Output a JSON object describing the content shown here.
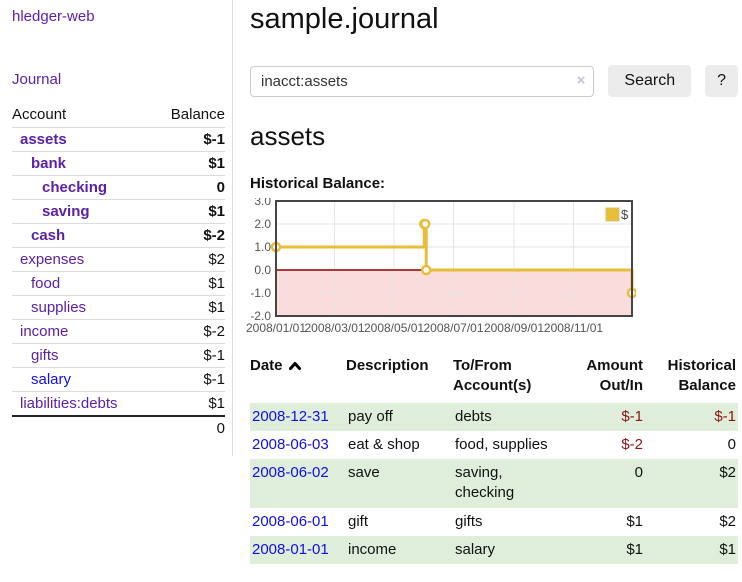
{
  "colors": {
    "link_purple": "#5b21a6",
    "link_blue": "#1010e0",
    "negative_strong": "#8b1414",
    "negative_soft": "#b26b6b",
    "row_green": "#dfeeda",
    "button_bg": "#ececec",
    "separator": "#dddddd"
  },
  "sidebar": {
    "brand": "hledger-web",
    "nav_journal": "Journal",
    "accounts": {
      "header_account": "Account",
      "header_balance": "Balance",
      "rows": [
        {
          "label": "assets",
          "balance": "$-1"
        },
        {
          "label": "bank",
          "balance": "$1"
        },
        {
          "label": "checking",
          "balance": "0"
        },
        {
          "label": "saving",
          "balance": "$1"
        },
        {
          "label": "cash",
          "balance": "$-2"
        },
        {
          "label": "expenses",
          "balance": "$2"
        },
        {
          "label": "food",
          "balance": "$1"
        },
        {
          "label": "supplies",
          "balance": "$1"
        },
        {
          "label": "income",
          "balance": "$-2"
        },
        {
          "label": "gifts",
          "balance": "$-1"
        },
        {
          "label": "salary",
          "balance": "$-1"
        },
        {
          "label": "liabilities:debts",
          "balance": "$1"
        }
      ],
      "total": "0"
    }
  },
  "main": {
    "title": "sample.journal",
    "search": {
      "value": "inacct:assets",
      "clear": "×",
      "submit": "Search",
      "help": "?"
    },
    "account_heading": "assets",
    "section_label": "Historical Balance:"
  },
  "chart_data": {
    "type": "line",
    "step": true,
    "title": "Historical Balance",
    "x_range": [
      "2008-01-01",
      "2008-12-31"
    ],
    "y_range": [
      -2,
      3
    ],
    "y_ticks": [
      "3.0",
      "2.0",
      "1.0",
      "0.0",
      "-1.0",
      "-2.0"
    ],
    "x_ticks": [
      {
        "label": "2008/01/01",
        "date": "2008-01-01"
      },
      {
        "label": "2008/03/01",
        "date": "2008-03-01"
      },
      {
        "label": "2008/05/01",
        "date": "2008-05-01"
      },
      {
        "label": "2008/07/01",
        "date": "2008-07-01"
      },
      {
        "label": "2008/09/01",
        "date": "2008-09-01"
      },
      {
        "label": "2008/11/01",
        "date": "2008-11-01"
      }
    ],
    "series": [
      {
        "name": "$",
        "color": "#e8bd3a",
        "points": [
          {
            "date": "2008-01-01",
            "value": 1
          },
          {
            "date": "2008-06-01",
            "value": 2
          },
          {
            "date": "2008-06-02",
            "value": 2
          },
          {
            "date": "2008-06-03",
            "value": 0
          },
          {
            "date": "2008-12-31",
            "value": -1
          }
        ]
      }
    ],
    "legend": {
      "label": "$",
      "position": "top-right"
    },
    "styles": {
      "grid": "#e5e5e5",
      "border": "#454545",
      "zero_line": "#8b0000",
      "negative_fill": "#fbdcdc",
      "marker_fill": "#ffffff",
      "tick_text": "#545454",
      "legend_box_border": "#d9c06a"
    }
  },
  "transactions": {
    "headers": {
      "date": "Date",
      "description": "Description",
      "accounts": "To/From Account(s)",
      "amount": "Amount Out/In",
      "balance": "Historical Balance"
    },
    "rows": [
      {
        "date": "2008-12-31",
        "description": "pay off",
        "accounts": "debts",
        "amount": "$-1",
        "balance": "$-1"
      },
      {
        "date": "2008-06-03",
        "description": "eat & shop",
        "accounts": "food, supplies",
        "amount": "$-2",
        "balance": "0"
      },
      {
        "date": "2008-06-02",
        "description": "save",
        "accounts": "saving, checking",
        "amount": "0",
        "balance": "$2"
      },
      {
        "date": "2008-06-01",
        "description": "gift",
        "accounts": "gifts",
        "amount": "$1",
        "balance": "$2"
      },
      {
        "date": "2008-01-01",
        "description": "income",
        "accounts": "salary",
        "amount": "$1",
        "balance": "$1"
      }
    ]
  }
}
